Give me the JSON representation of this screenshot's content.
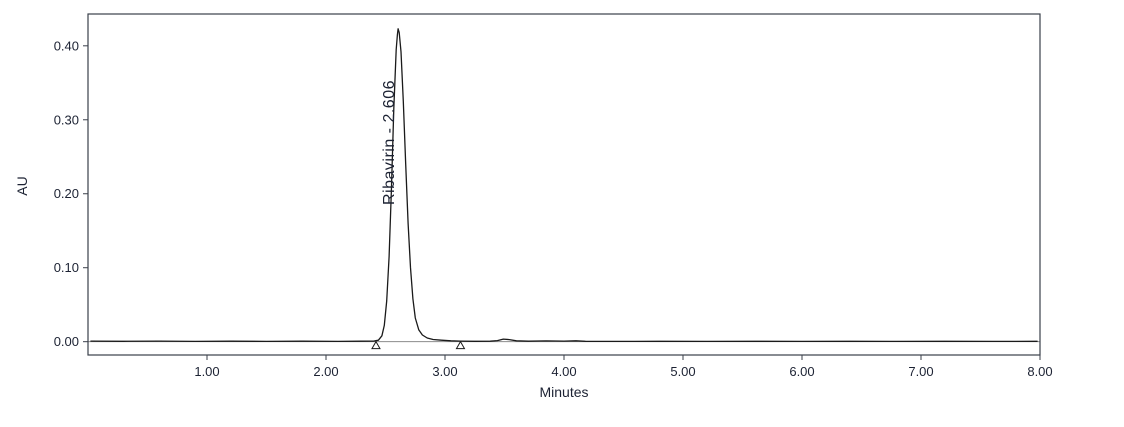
{
  "chart_data": {
    "type": "line",
    "title": "",
    "xlabel": "Minutes",
    "ylabel": "AU",
    "xlim": [
      0,
      8
    ],
    "ylim": [
      -0.018,
      0.443
    ],
    "grid": false,
    "legend": "none",
    "x_ticks": [
      {
        "value": 1,
        "label": "1.00"
      },
      {
        "value": 2,
        "label": "2.00"
      },
      {
        "value": 3,
        "label": "3.00"
      },
      {
        "value": 4,
        "label": "4.00"
      },
      {
        "value": 5,
        "label": "5.00"
      },
      {
        "value": 6,
        "label": "6.00"
      },
      {
        "value": 7,
        "label": "7.00"
      },
      {
        "value": 8,
        "label": "8.00"
      }
    ],
    "y_ticks": [
      {
        "value": 0.0,
        "label": "0.00"
      },
      {
        "value": 0.1,
        "label": "0.10"
      },
      {
        "value": 0.2,
        "label": "0.20"
      },
      {
        "value": 0.3,
        "label": "0.30"
      },
      {
        "value": 0.4,
        "label": "0.40"
      }
    ],
    "series": [
      {
        "name": "chromatogram-trace",
        "points": [
          [
            0.02,
            0.0008
          ],
          [
            0.3,
            0.0005
          ],
          [
            0.6,
            0.0008
          ],
          [
            0.9,
            0.0004
          ],
          [
            1.2,
            0.0007
          ],
          [
            1.5,
            0.0004
          ],
          [
            1.8,
            0.0006
          ],
          [
            2.1,
            0.0004
          ],
          [
            2.3,
            0.0006
          ],
          [
            2.4,
            0.0008
          ],
          [
            2.44,
            0.002
          ],
          [
            2.47,
            0.008
          ],
          [
            2.49,
            0.022
          ],
          [
            2.51,
            0.055
          ],
          [
            2.53,
            0.115
          ],
          [
            2.55,
            0.205
          ],
          [
            2.57,
            0.315
          ],
          [
            2.59,
            0.395
          ],
          [
            2.6,
            0.415
          ],
          [
            2.606,
            0.423
          ],
          [
            2.615,
            0.418
          ],
          [
            2.63,
            0.392
          ],
          [
            2.65,
            0.325
          ],
          [
            2.67,
            0.24
          ],
          [
            2.69,
            0.16
          ],
          [
            2.71,
            0.1
          ],
          [
            2.73,
            0.058
          ],
          [
            2.75,
            0.032
          ],
          [
            2.78,
            0.016
          ],
          [
            2.81,
            0.009
          ],
          [
            2.85,
            0.005
          ],
          [
            2.9,
            0.003
          ],
          [
            2.97,
            0.002
          ],
          [
            3.05,
            0.0012
          ],
          [
            3.13,
            0.0008
          ],
          [
            3.25,
            0.0005
          ],
          [
            3.38,
            0.0006
          ],
          [
            3.44,
            0.0015
          ],
          [
            3.49,
            0.0035
          ],
          [
            3.54,
            0.0028
          ],
          [
            3.6,
            0.0012
          ],
          [
            3.7,
            0.0006
          ],
          [
            3.85,
            0.001
          ],
          [
            4.0,
            0.0008
          ],
          [
            4.1,
            0.0012
          ],
          [
            4.18,
            0.0005
          ],
          [
            4.4,
            0.0004
          ],
          [
            4.8,
            0.0005
          ],
          [
            5.2,
            0.0004
          ],
          [
            5.6,
            0.0005
          ],
          [
            6.0,
            0.0004
          ],
          [
            6.4,
            0.0005
          ],
          [
            6.8,
            0.0004
          ],
          [
            7.2,
            0.0005
          ],
          [
            7.6,
            0.0004
          ],
          [
            7.98,
            0.0005
          ]
        ]
      }
    ],
    "peaks": [
      {
        "name": "Ribavirin",
        "retention_time_min": 2.606,
        "apex_au": 0.423,
        "label": "Ribavirin - 2.606"
      }
    ],
    "integration_markers_min": [
      2.42,
      3.13
    ],
    "colors": {
      "trace": "#1a1a1a",
      "baseline": "#8c8c8c",
      "axis": "#3a3f4a",
      "text": "#1c2233",
      "background": "#ffffff"
    }
  }
}
